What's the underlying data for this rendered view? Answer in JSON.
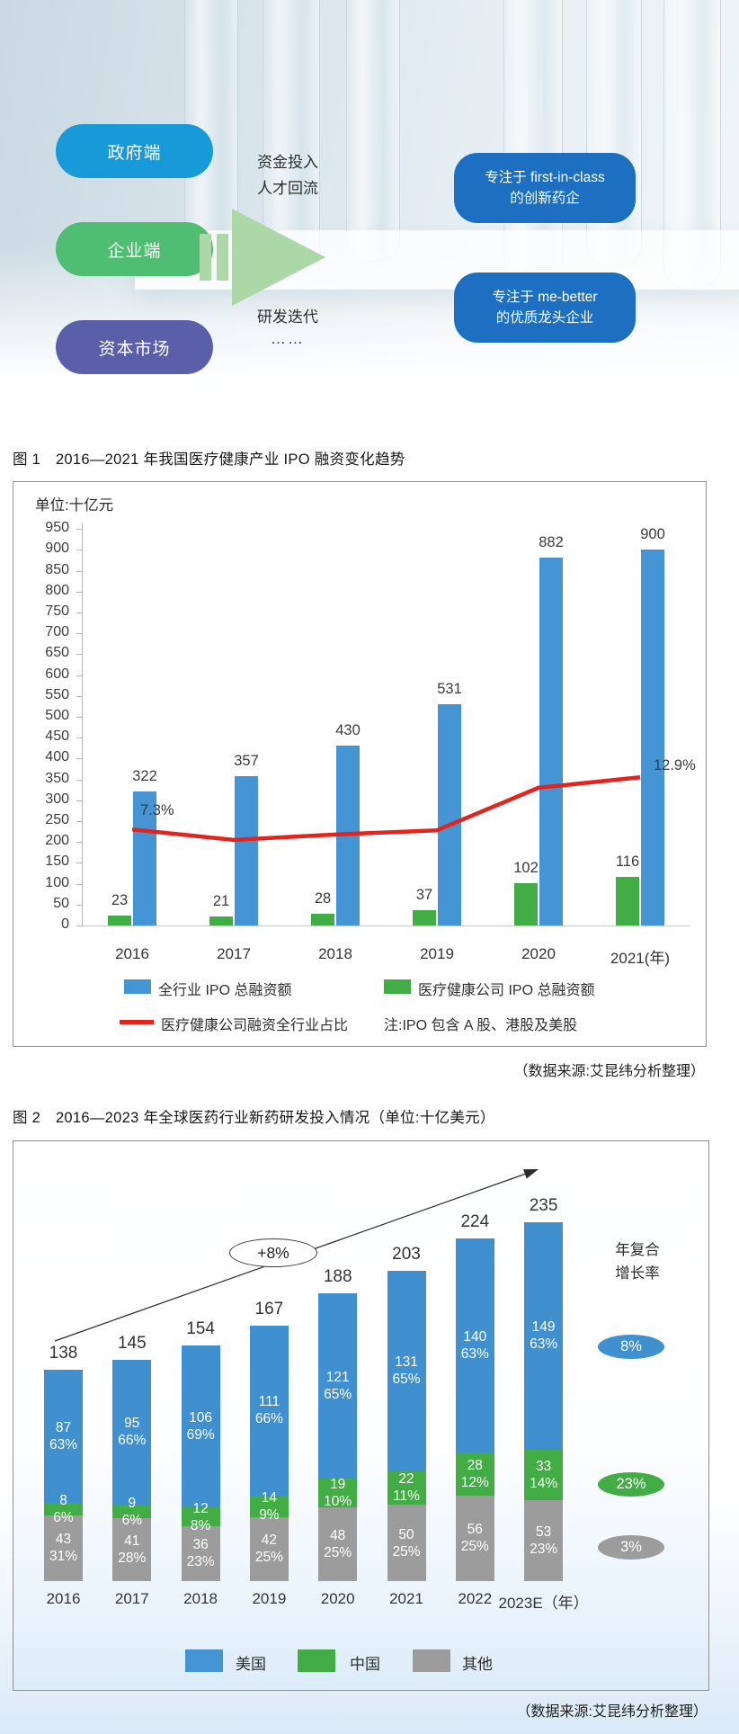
{
  "hero": {
    "pills": [
      {
        "label": "政府端",
        "color": "#189AD8"
      },
      {
        "label": "企业端",
        "color": "#50BE72"
      },
      {
        "label": "资本市场",
        "color": "#5B5EA9"
      }
    ],
    "flow_top_line1": "资金投入",
    "flow_top_line2": "人才回流",
    "flow_bottom_line1": "研发迭代",
    "flow_bottom_line2": "……",
    "arrow_color": "#ABD8A6",
    "targets": [
      {
        "line1": "专注于 first-in-class",
        "line2": "的创新药企"
      },
      {
        "line1": "专注于 me-better",
        "line2": "的优质龙头企业"
      }
    ],
    "target_color": "#1D70C1"
  },
  "figure1": {
    "title": "图 1　2016—2021 年我国医疗健康产业 IPO 融资变化趋势",
    "unit_label": "单位:十亿元",
    "legend": [
      {
        "label": "全行业 IPO 总融资额",
        "color": "#4595D5",
        "type": "bar"
      },
      {
        "label": "医疗健康公司 IPO 总融资额",
        "color": "#43AD45",
        "type": "bar"
      },
      {
        "label": "医疗健康公司融资全行业占比",
        "color": "#E3231E",
        "type": "line"
      }
    ],
    "note": "注:IPO 包含 A 股、港股及美股",
    "source": "（数据来源:艾昆纬分析整理）"
  },
  "figure2": {
    "title": "图 2　2016—2023 年全球医药行业新药研发投入情况（单位:十亿美元）",
    "cagr_title_line1": "年复合",
    "cagr_title_line2": "增长率",
    "growth_annotation": "+8%",
    "legend": [
      {
        "label": "美国",
        "color": "#4090D0"
      },
      {
        "label": "中国",
        "color": "#43AD45"
      },
      {
        "label": "其他",
        "color": "#9C9C9C"
      }
    ],
    "source": "（数据来源:艾昆纬分析整理）"
  },
  "chart_data": [
    {
      "type": "bar",
      "title": "2016—2021 年我国医疗健康产业 IPO 融资变化趋势",
      "unit": "十亿元",
      "categories": [
        "2016",
        "2017",
        "2018",
        "2019",
        "2020",
        "2021(年)"
      ],
      "y_axis": {
        "min": 0,
        "max": 950,
        "step": 50
      },
      "grid": false,
      "legend_position": "bottom",
      "series": [
        {
          "name": "全行业 IPO 总融资额",
          "type": "bar",
          "color": "#4595D5",
          "values": [
            322,
            357,
            430,
            531,
            882,
            900
          ]
        },
        {
          "name": "医疗健康公司 IPO 总融资额",
          "type": "bar",
          "color": "#43AD45",
          "values": [
            23,
            21,
            28,
            37,
            102,
            116
          ]
        },
        {
          "name": "医疗健康公司融资全行业占比",
          "type": "line",
          "color": "#E3231E",
          "plotted_values_axis_units": [
            230,
            205,
            218,
            228,
            330,
            355
          ],
          "point_labels": [
            {
              "index": 0,
              "text": "7.3%"
            },
            {
              "index": 5,
              "text": "12.9%"
            }
          ]
        }
      ],
      "note": "注:IPO 包含 A 股、港股及美股"
    },
    {
      "type": "stacked-bar",
      "title": "2016—2023 年全球医药行业新药研发投入情况",
      "unit": "十亿美元",
      "categories": [
        "2016",
        "2017",
        "2018",
        "2019",
        "2020",
        "2021",
        "2022",
        "2023E（年）"
      ],
      "totals": [
        138,
        145,
        154,
        167,
        188,
        203,
        224,
        235
      ],
      "series": [
        {
          "key": "us",
          "name": "美国",
          "color": "#4090D0",
          "values": [
            87,
            95,
            106,
            111,
            121,
            131,
            140,
            149
          ],
          "pct": [
            "63%",
            "66%",
            "69%",
            "66%",
            "65%",
            "65%",
            "63%",
            "63%"
          ]
        },
        {
          "key": "cn",
          "name": "中国",
          "color": "#43AD45",
          "values": [
            8,
            9,
            12,
            14,
            19,
            22,
            28,
            33
          ],
          "pct": [
            "6%",
            "6%",
            "8%",
            "9%",
            "10%",
            "11%",
            "12%",
            "14%"
          ]
        },
        {
          "key": "other",
          "name": "其他",
          "color": "#9C9C9C",
          "values": [
            43,
            41,
            36,
            42,
            48,
            50,
            56,
            53
          ],
          "pct": [
            "31%",
            "28%",
            "23%",
            "25%",
            "25%",
            "25%",
            "25%",
            "23%"
          ]
        }
      ],
      "growth_annotation": "+8%",
      "cagr_title": "年复合增长率",
      "cagr_badges": [
        {
          "label": "8%",
          "color": "#4090D0"
        },
        {
          "label": "23%",
          "color": "#43AD45"
        },
        {
          "label": "3%",
          "color": "#9C9C9C"
        }
      ],
      "legend_position": "bottom"
    }
  ]
}
